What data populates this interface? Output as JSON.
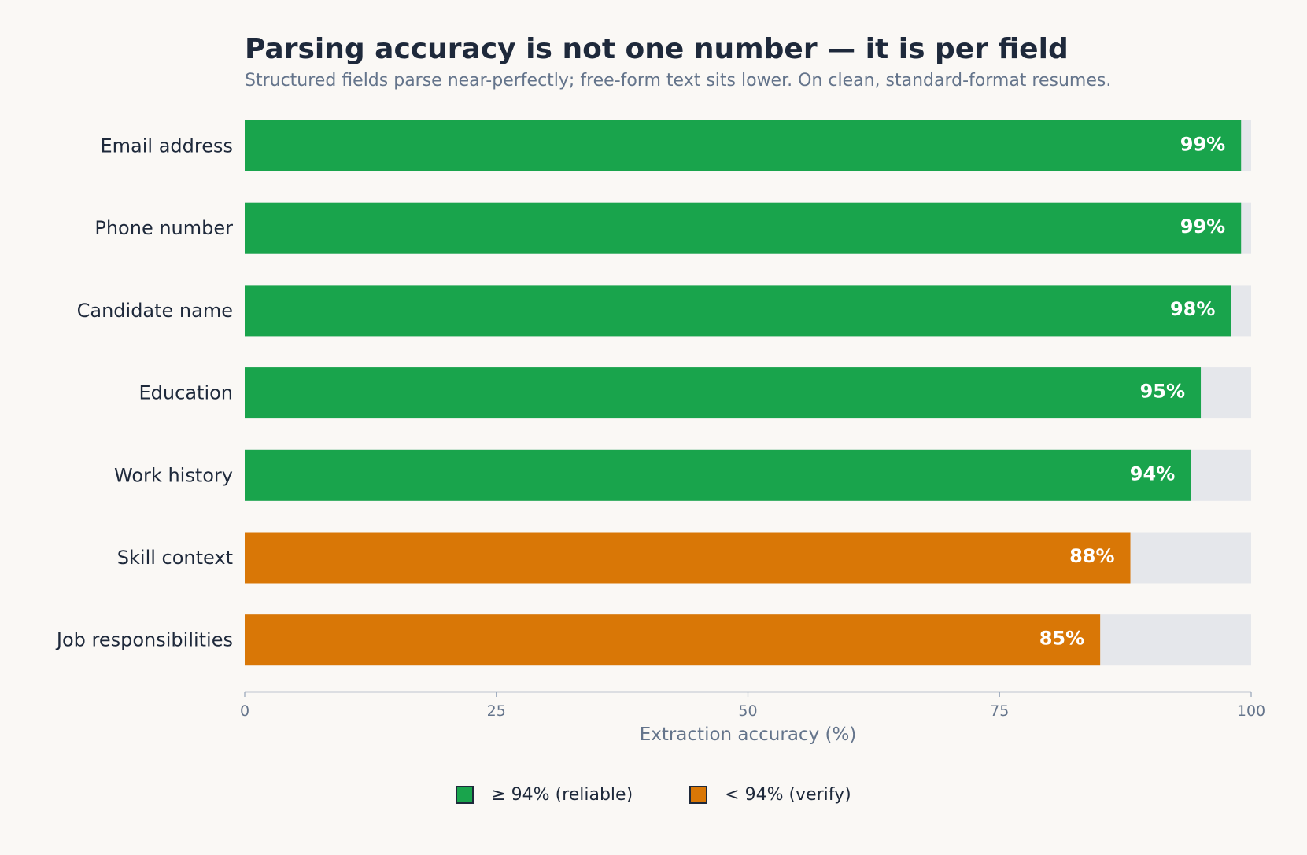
{
  "colors": {
    "reliable": "#19a44c",
    "verify": "#d97706",
    "track": "#e5e7eb",
    "background": "#faf8f5",
    "text": "#1e293b",
    "muted": "#64748b",
    "bar_label": "#ffffff"
  },
  "chart_data": {
    "type": "bar",
    "orientation": "horizontal",
    "title": "Parsing accuracy is not one number — it is per field",
    "subtitle": "Structured fields parse near-perfectly; free-form text sits lower. On clean, standard-format resumes.",
    "categories": [
      "Email address",
      "Phone number",
      "Candidate name",
      "Education",
      "Work history",
      "Skill context",
      "Job responsibilities"
    ],
    "values": [
      99,
      99,
      98,
      95,
      94,
      88,
      85
    ],
    "value_labels": [
      "99%",
      "99%",
      "98%",
      "95%",
      "94%",
      "88%",
      "85%"
    ],
    "threshold": 94,
    "xlabel": "Extraction accuracy (%)",
    "xlim": [
      0,
      100
    ],
    "xticks": [
      0,
      25,
      50,
      75,
      100
    ],
    "grid": false,
    "legend_position": "bottom",
    "legend": [
      {
        "label": "≥ 94% (reliable)",
        "color": "#19a44c"
      },
      {
        "label": "< 94% (verify)",
        "color": "#d97706"
      }
    ]
  }
}
